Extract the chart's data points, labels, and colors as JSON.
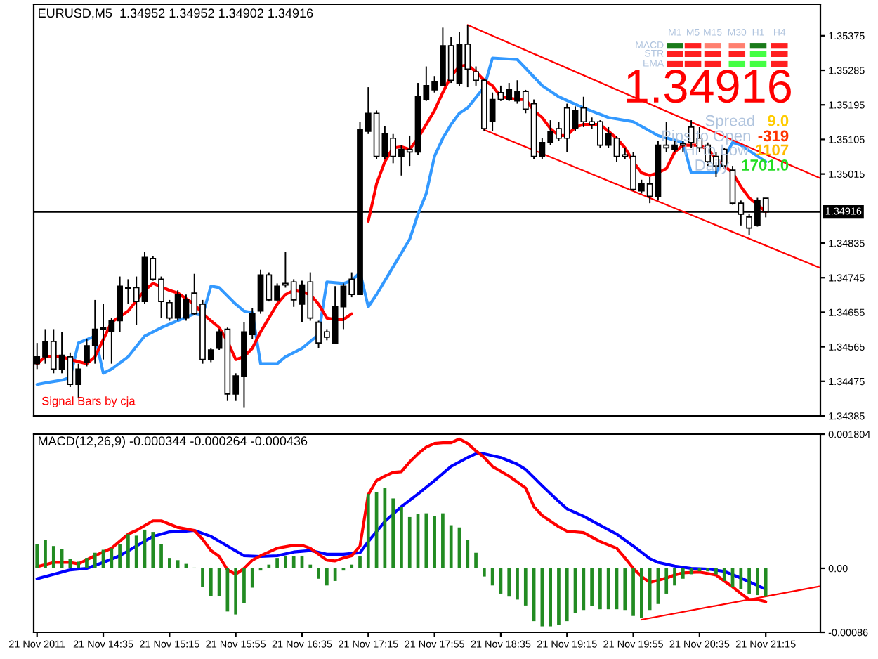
{
  "chart_data": [
    {
      "type": "candlestick",
      "title": "EURUSD,M5  1.34952 1.34952 1.34902 1.34916",
      "x": [
        "2011-11-21T13:55",
        "2011-11-21T14:00",
        "2011-11-21T14:05",
        "2011-11-21T14:10",
        "2011-11-21T14:15",
        "2011-11-21T14:20",
        "2011-11-21T14:25",
        "2011-11-21T14:30",
        "2011-11-21T14:35",
        "2011-11-21T14:40",
        "2011-11-21T14:45",
        "2011-11-21T14:50",
        "2011-11-21T14:55",
        "2011-11-21T15:00",
        "2011-11-21T15:05",
        "2011-11-21T15:10",
        "2011-11-21T15:15",
        "2011-11-21T15:20",
        "2011-11-21T15:25",
        "2011-11-21T15:30",
        "2011-11-21T15:35",
        "2011-11-21T15:40",
        "2011-11-21T15:45",
        "2011-11-21T15:50",
        "2011-11-21T15:55",
        "2011-11-21T16:00",
        "2011-11-21T16:05",
        "2011-11-21T16:10",
        "2011-11-21T16:15",
        "2011-11-21T16:20",
        "2011-11-21T16:25",
        "2011-11-21T16:30",
        "2011-11-21T16:35",
        "2011-11-21T16:40",
        "2011-11-21T16:45",
        "2011-11-21T16:50",
        "2011-11-21T16:55",
        "2011-11-21T17:00",
        "2011-11-21T17:05",
        "2011-11-21T17:10",
        "2011-11-21T17:15",
        "2011-11-21T17:20",
        "2011-11-21T17:25",
        "2011-11-21T17:30",
        "2011-11-21T17:35",
        "2011-11-21T17:40",
        "2011-11-21T17:45",
        "2011-11-21T17:50",
        "2011-11-21T17:55",
        "2011-11-21T18:00",
        "2011-11-21T18:05",
        "2011-11-21T18:10",
        "2011-11-21T18:15",
        "2011-11-21T18:20",
        "2011-11-21T18:25",
        "2011-11-21T18:30",
        "2011-11-21T18:35",
        "2011-11-21T18:40",
        "2011-11-21T18:45",
        "2011-11-21T18:50",
        "2011-11-21T18:55",
        "2011-11-21T19:00",
        "2011-11-21T19:05",
        "2011-11-21T19:10",
        "2011-11-21T19:15",
        "2011-11-21T19:20",
        "2011-11-21T19:25",
        "2011-11-21T19:30",
        "2011-11-21T19:35",
        "2011-11-21T19:40",
        "2011-11-21T19:45",
        "2011-11-21T19:50",
        "2011-11-21T19:55",
        "2011-11-21T20:00",
        "2011-11-21T20:05",
        "2011-11-21T20:10",
        "2011-11-21T20:15",
        "2011-11-21T20:20",
        "2011-11-21T20:25",
        "2011-11-21T20:30",
        "2011-11-21T20:35",
        "2011-11-21T20:40",
        "2011-11-21T20:45",
        "2011-11-21T20:50",
        "2011-11-21T20:55",
        "2011-11-21T21:00",
        "2011-11-21T21:05",
        "2011-11-21T21:10",
        "2011-11-21T21:15"
      ],
      "ohlc": [
        [
          1.34521,
          1.34575,
          1.34507,
          1.34539
        ],
        [
          1.34539,
          1.34611,
          1.34521,
          1.34579
        ],
        [
          1.34579,
          1.34611,
          1.34496,
          1.34507
        ],
        [
          1.34507,
          1.34604,
          1.34496,
          1.34543
        ],
        [
          1.34539,
          1.3455,
          1.3446,
          1.34467
        ],
        [
          1.34467,
          1.34521,
          1.34431,
          1.34507
        ],
        [
          1.34525,
          1.34586,
          1.34514,
          1.34568
        ],
        [
          1.34568,
          1.34687,
          1.34521,
          1.34611
        ],
        [
          1.34611,
          1.34676,
          1.34532,
          1.34615
        ],
        [
          1.34604,
          1.3464,
          1.34521,
          1.34633
        ],
        [
          1.34633,
          1.34748,
          1.34604,
          1.34723
        ],
        [
          1.34716,
          1.34741,
          1.34676,
          1.34719
        ],
        [
          1.34719,
          1.34748,
          1.34622,
          1.34683
        ],
        [
          1.34683,
          1.34813,
          1.34676,
          1.34798
        ],
        [
          1.34795,
          1.34802,
          1.34737,
          1.34741
        ],
        [
          1.34741,
          1.34748,
          1.3464,
          1.34683
        ],
        [
          1.3468,
          1.34687,
          1.34633,
          1.3464
        ],
        [
          1.3464,
          1.34712,
          1.34633,
          1.34701
        ],
        [
          1.3464,
          1.34701,
          1.34633,
          1.34687
        ],
        [
          1.34705,
          1.34755,
          1.34647,
          1.34651
        ],
        [
          1.34676,
          1.34687,
          1.34521,
          1.34532
        ],
        [
          1.34532,
          1.34561,
          1.34525,
          1.34557
        ],
        [
          1.34561,
          1.34611,
          1.34557,
          1.34604
        ],
        [
          1.34611,
          1.34615,
          1.34424,
          1.34442
        ],
        [
          1.34442,
          1.34496,
          1.34424,
          1.34489
        ],
        [
          1.34489,
          1.34629,
          1.34406,
          1.34604
        ],
        [
          1.34597,
          1.34665,
          1.34586,
          1.34651
        ],
        [
          1.34658,
          1.34766,
          1.34651,
          1.34752
        ],
        [
          1.34752,
          1.34759,
          1.34683,
          1.34687
        ],
        [
          1.34687,
          1.3473,
          1.34683,
          1.34723
        ],
        [
          1.3473,
          1.34813,
          1.34719,
          1.34726
        ],
        [
          1.34734,
          1.34741,
          1.34669,
          1.34687
        ],
        [
          1.34676,
          1.34737,
          1.34629,
          1.34726
        ],
        [
          1.34734,
          1.34759,
          1.34633,
          1.3464
        ],
        [
          1.34629,
          1.34633,
          1.34561,
          1.34575
        ],
        [
          1.34604,
          1.34611,
          1.34582,
          1.3459
        ],
        [
          1.34575,
          1.34723,
          1.34572,
          1.34669
        ],
        [
          1.34669,
          1.3473,
          1.34611,
          1.34723
        ],
        [
          1.34741,
          1.34759,
          1.34694,
          1.34701
        ],
        [
          1.34701,
          1.35151,
          1.34701,
          1.3513
        ],
        [
          1.35126,
          1.35241,
          1.35119,
          1.35173
        ],
        [
          1.35173,
          1.3518,
          1.35054,
          1.35061
        ],
        [
          1.35061,
          1.3514,
          1.35054,
          1.35119
        ],
        [
          1.35108,
          1.35119,
          1.35043,
          1.35061
        ],
        [
          1.35061,
          1.3509,
          1.35011,
          1.35079
        ],
        [
          1.35079,
          1.35115,
          1.35036,
          1.35072
        ],
        [
          1.35072,
          1.35252,
          1.35065,
          1.35216
        ],
        [
          1.35209,
          1.35295,
          1.35205,
          1.35245
        ],
        [
          1.35234,
          1.3527,
          1.35227,
          1.35256
        ],
        [
          1.35245,
          1.35396,
          1.35245,
          1.35349
        ],
        [
          1.35349,
          1.35371,
          1.35252,
          1.35259
        ],
        [
          1.35252,
          1.35385,
          1.35245,
          1.35353
        ],
        [
          1.35353,
          1.35403,
          1.35241,
          1.35288
        ],
        [
          1.35281,
          1.35295,
          1.35245,
          1.35259
        ],
        [
          1.35259,
          1.35263,
          1.35126,
          1.35133
        ],
        [
          1.35151,
          1.35227,
          1.35126,
          1.35209
        ],
        [
          1.35227,
          1.35245,
          1.35205,
          1.35209
        ],
        [
          1.35209,
          1.35252,
          1.35205,
          1.35234
        ],
        [
          1.35205,
          1.35259,
          1.35198,
          1.3523
        ],
        [
          1.3523,
          1.35234,
          1.35173,
          1.35184
        ],
        [
          1.35198,
          1.35209,
          1.35054,
          1.35061
        ],
        [
          1.35061,
          1.35108,
          1.35054,
          1.35097
        ],
        [
          1.35097,
          1.35155,
          1.3509,
          1.35126
        ],
        [
          1.35133,
          1.35151,
          1.35101,
          1.35108
        ],
        [
          1.35187,
          1.35198,
          1.35072,
          1.35108
        ],
        [
          1.35133,
          1.35191,
          1.35126,
          1.3518
        ],
        [
          1.35187,
          1.35216,
          1.35137,
          1.35151
        ],
        [
          1.35151,
          1.35162,
          1.35133,
          1.35144
        ],
        [
          1.35151,
          1.35155,
          1.35083,
          1.3509
        ],
        [
          1.3509,
          1.35137,
          1.35083,
          1.35119
        ],
        [
          1.35108,
          1.35115,
          1.35047,
          1.35061
        ],
        [
          1.35065,
          1.35083,
          1.35054,
          1.35061
        ],
        [
          1.35061,
          1.35072,
          1.34971,
          1.34975
        ],
        [
          1.34971,
          1.35,
          1.34964,
          1.34989
        ],
        [
          1.34989,
          1.35007,
          1.34939,
          1.34957
        ],
        [
          1.34957,
          1.35101,
          1.34946,
          1.3509
        ],
        [
          1.3509,
          1.35151,
          1.35072,
          1.35083
        ],
        [
          1.35079,
          1.35101,
          1.35072,
          1.3509
        ],
        [
          1.35094,
          1.35101,
          1.35072,
          1.3509
        ],
        [
          1.35137,
          1.35155,
          1.35083,
          1.35097
        ],
        [
          1.35108,
          1.35137,
          1.35072,
          1.35083
        ],
        [
          1.3509,
          1.35097,
          1.35036,
          1.35047
        ],
        [
          1.35061,
          1.35072,
          1.35007,
          1.35036
        ],
        [
          1.35079,
          1.35083,
          1.35029,
          1.35036
        ],
        [
          1.35025,
          1.35036,
          1.34935,
          1.34939
        ],
        [
          1.34939,
          1.34946,
          1.34881,
          1.3491
        ],
        [
          1.34903,
          1.3491,
          1.34856,
          1.34874
        ],
        [
          1.34881,
          1.34953,
          1.34878,
          1.34946
        ],
        [
          1.34952,
          1.34952,
          1.34902,
          1.34916
        ]
      ],
      "colors": [
        "#000000",
        "#000000",
        "#ffffff",
        "#000000",
        "#ffffff",
        "#000000",
        "#000000",
        "#000000",
        "#000000",
        "#000000",
        "#000000",
        "#ffffff",
        "#ffffff",
        "#000000",
        "#ffffff",
        "#ffffff",
        "#ffffff",
        "#000000",
        "#000000",
        "#ffffff",
        "#ffffff",
        "#000000",
        "#000000",
        "#ffffff",
        "#000000",
        "#000000",
        "#000000",
        "#000000",
        "#ffffff",
        "#000000",
        "#ffffff",
        "#ffffff",
        "#000000",
        "#ffffff",
        "#ffffff",
        "#ffffff",
        "#000000",
        "#000000",
        "#ffffff",
        "#000000",
        "#000000",
        "#ffffff",
        "#000000",
        "#ffffff",
        "#000000",
        "#ffffff",
        "#000000",
        "#000000",
        "#000000",
        "#000000",
        "#ffffff",
        "#000000",
        "#ffffff",
        "#ffffff",
        "#ffffff",
        "#000000",
        "#ffffff",
        "#000000",
        "#000000",
        "#ffffff",
        "#ffffff",
        "#000000",
        "#000000",
        "#ffffff",
        "#ffffff",
        "#000000",
        "#ffffff",
        "#ffffff",
        "#ffffff",
        "#000000",
        "#ffffff",
        "#ffffff",
        "#ffffff",
        "#000000",
        "#ffffff",
        "#000000",
        "#ffffff",
        "#000000",
        "#ffffff",
        "#ffffff",
        "#ffffff",
        "#ffffff",
        "#ffffff",
        "#ffffff",
        "#ffffff",
        "#ffffff",
        "#ffffff",
        "#000000",
        "#ffffff"
      ],
      "series": [
        {
          "type": "line",
          "color": "#3399ff",
          "x": [
            "2011-11-21T13:55",
            "2011-11-21T14:00",
            "2011-11-21T14:10",
            "2011-11-21T14:15",
            "2011-11-21T14:20",
            "2011-11-21T14:30",
            "2011-11-21T14:35",
            "2011-11-21T14:40",
            "2011-11-21T14:50",
            "2011-11-21T15:00",
            "2011-11-21T15:10",
            "2011-11-21T15:20",
            "2011-11-21T15:30",
            "2011-11-21T15:35",
            "2011-11-21T15:40",
            "2011-11-21T15:45",
            "2011-11-21T15:55",
            "2011-11-21T16:00",
            "2011-11-21T16:05",
            "2011-11-21T16:10",
            "2011-11-21T16:20",
            "2011-11-21T16:25",
            "2011-11-21T16:35",
            "2011-11-21T16:45",
            "2011-11-21T16:50",
            "2011-11-21T17:00",
            "2011-11-21T17:05",
            "2011-11-21T17:10",
            "2011-11-21T17:15",
            "2011-11-21T17:20",
            "2011-11-21T17:30",
            "2011-11-21T17:40",
            "2011-11-21T17:45",
            "2011-11-21T17:50",
            "2011-11-21T17:55",
            "2011-11-21T18:00",
            "2011-11-21T18:05",
            "2011-11-21T18:10",
            "2011-11-21T18:15",
            "2011-11-21T18:25",
            "2011-11-21T18:30",
            "2011-11-21T18:45",
            "2011-11-21T19:00",
            "2011-11-21T19:10",
            "2011-11-21T19:25",
            "2011-11-21T19:40",
            "2011-11-21T19:55",
            "2011-11-21T20:10",
            "2011-11-21T20:25",
            "2011-11-21T20:30",
            "2011-11-21T20:45",
            "2011-11-21T20:55",
            "2011-11-21T21:00",
            "2011-11-21T21:15"
          ],
          "values": [
            1.34467,
            1.34471,
            1.34478,
            1.34485,
            1.34575,
            1.34593,
            1.34496,
            1.34507,
            1.34539,
            1.34593,
            1.34615,
            1.34633,
            1.34651,
            1.34647,
            1.34723,
            1.34719,
            1.34676,
            1.34658,
            1.34654,
            1.34521,
            1.34521,
            1.34539,
            1.34561,
            1.34597,
            1.34734,
            1.3473,
            1.34737,
            1.34759,
            1.34669,
            1.34701,
            1.34773,
            1.34845,
            1.3491,
            1.34964,
            1.35061,
            1.35108,
            1.35144,
            1.35173,
            1.35187,
            1.35241,
            1.35317,
            1.35313,
            1.35245,
            1.35216,
            1.35187,
            1.35162,
            1.35151,
            1.35115,
            1.35097,
            1.35018,
            1.35018,
            1.35097,
            1.3509,
            1.35047
          ]
        },
        {
          "type": "line",
          "color": "#ff0000",
          "x": [
            "2011-11-21T13:55",
            "2011-11-21T14:00",
            "2011-11-21T14:10",
            "2011-11-21T14:15",
            "2011-11-21T14:25",
            "2011-11-21T14:30",
            "2011-11-21T14:40",
            "2011-11-21T14:50",
            "2011-11-21T15:00",
            "2011-11-21T15:05",
            "2011-11-21T15:15",
            "2011-11-21T15:20",
            "2011-11-21T15:30",
            "2011-11-21T15:35",
            "2011-11-21T15:45",
            "2011-11-21T15:50",
            "2011-11-21T15:55",
            "2011-11-21T16:00",
            "2011-11-21T16:05",
            "2011-11-21T16:10",
            "2011-11-21T16:15",
            "2011-11-21T16:20",
            "2011-11-21T16:25",
            "2011-11-21T16:30",
            "2011-11-21T16:35",
            "2011-11-21T16:40",
            "2011-11-21T16:45",
            "2011-11-21T16:50",
            "2011-11-21T16:55",
            "2011-11-21T17:00",
            "2011-11-21T17:05",
            "2011-11-21T17:10",
            "2011-11-21T17:15",
            "2011-11-21T17:20",
            "2011-11-21T17:25",
            "2011-11-21T17:30",
            "2011-11-21T17:35",
            "2011-11-21T17:40",
            "2011-11-21T17:45",
            "2011-11-21T17:50",
            "2011-11-21T17:55",
            "2011-11-21T18:00",
            "2011-11-21T18:05",
            "2011-11-21T18:10",
            "2011-11-21T18:15",
            "2011-11-21T18:20",
            "2011-11-21T18:25",
            "2011-11-21T18:30",
            "2011-11-21T18:35",
            "2011-11-21T18:45",
            "2011-11-21T18:50",
            "2011-11-21T18:55",
            "2011-11-21T19:00",
            "2011-11-21T19:05",
            "2011-11-21T19:10",
            "2011-11-21T19:15",
            "2011-11-21T19:20",
            "2011-11-21T19:25",
            "2011-11-21T19:35",
            "2011-11-21T19:40",
            "2011-11-21T19:45",
            "2011-11-21T19:50",
            "2011-11-21T19:55",
            "2011-11-21T20:00",
            "2011-11-21T20:05",
            "2011-11-21T20:10",
            "2011-11-21T20:15",
            "2011-11-21T20:20",
            "2011-11-21T20:25",
            "2011-11-21T20:30",
            "2011-11-21T20:35",
            "2011-11-21T20:40",
            "2011-11-21T20:45",
            "2011-11-21T20:50",
            "2011-11-21T20:55",
            "2011-11-21T21:00",
            "2011-11-21T21:05",
            "2011-11-21T21:10",
            "2011-11-21T21:15"
          ],
          "values": [
            1.34521,
            1.34539,
            1.34539,
            1.34532,
            1.34521,
            1.34539,
            1.34629,
            1.34658,
            1.34712,
            1.3473,
            1.34712,
            1.34705,
            1.34676,
            1.34651,
            1.34615,
            1.34579,
            1.34532,
            1.34539,
            1.34561,
            1.34604,
            1.3464,
            1.34676,
            1.34701,
            1.34712,
            1.34708,
            1.34701,
            1.34676,
            1.3464,
            1.34636,
            1.34636,
            1.34651,
            null,
            1.34892,
            1.34989,
            1.35047,
            1.35083,
            1.35086,
            1.35079,
            1.35108,
            1.35144,
            1.3518,
            1.35227,
            1.3527,
            1.35295,
            1.35299,
            1.35281,
            1.35259,
            1.35245,
            1.35216,
            1.35209,
            1.35209,
            1.3518,
            1.35162,
            1.35133,
            1.35115,
            1.35115,
            1.35137,
            1.35144,
            1.35144,
            1.35126,
            1.35108,
            1.35083,
            1.35047,
            1.35018,
            1.35011,
            1.35018,
            1.35029,
            1.35072,
            1.3509,
            1.3509,
            1.3509,
            1.35079,
            1.35054,
            1.35036,
            1.35018,
            1.34982,
            1.34953,
            1.34935,
            1.34917
          ]
        },
        {
          "type": "line",
          "color": "#ff0000",
          "x": [
            "2011-11-21T18:15",
            "2011-11-21T21:48"
          ],
          "values": [
            1.35403,
            1.35004
          ]
        },
        {
          "type": "line",
          "color": "#ff0000",
          "x": [
            "2011-11-21T18:25",
            "2011-11-21T21:48"
          ],
          "values": [
            1.3513,
            1.3477
          ]
        }
      ],
      "xlim": [
        "2011-11-21T13:53",
        "2011-11-21T21:48"
      ],
      "ylim": [
        1.34385,
        1.35457
      ],
      "yticks": [
        1.35375,
        1.35285,
        1.35195,
        1.35105,
        1.35015,
        1.34835,
        1.34745,
        1.34655,
        1.34565,
        1.34475,
        1.34385
      ],
      "tick_labels": "y",
      "ref_lines": [
        {
          "axis": "y",
          "value": 1.34916,
          "label": "1.34916",
          "color": "#000000"
        }
      ],
      "annotations": [
        "Signal Bars by cja",
        "MACD",
        "STR",
        "EMA",
        "M1",
        "M5",
        "M15",
        "M30",
        "H1",
        "H4",
        "1.34916",
        "Spread",
        "9.0",
        "Pips to Open",
        "-319",
        "Hi to Low",
        "1107",
        "Daily",
        "1701.0"
      ]
    },
    {
      "type": "bar",
      "title": "MACD(12,26,9) -0.000344 -0.000264 -0.000436",
      "x": [
        "2011-11-21T13:55",
        "2011-11-21T14:00",
        "2011-11-21T14:05",
        "2011-11-21T14:10",
        "2011-11-21T14:15",
        "2011-11-21T14:20",
        "2011-11-21T14:25",
        "2011-11-21T14:30",
        "2011-11-21T14:35",
        "2011-11-21T14:40",
        "2011-11-21T14:45",
        "2011-11-21T14:50",
        "2011-11-21T14:55",
        "2011-11-21T15:00",
        "2011-11-21T15:05",
        "2011-11-21T15:10",
        "2011-11-21T15:15",
        "2011-11-21T15:20",
        "2011-11-21T15:25",
        "2011-11-21T15:30",
        "2011-11-21T15:35",
        "2011-11-21T15:40",
        "2011-11-21T15:45",
        "2011-11-21T15:50",
        "2011-11-21T15:55",
        "2011-11-21T16:00",
        "2011-11-21T16:05",
        "2011-11-21T16:10",
        "2011-11-21T16:15",
        "2011-11-21T16:20",
        "2011-11-21T16:25",
        "2011-11-21T16:30",
        "2011-11-21T16:35",
        "2011-11-21T16:40",
        "2011-11-21T16:45",
        "2011-11-21T16:50",
        "2011-11-21T16:55",
        "2011-11-21T17:00",
        "2011-11-21T17:05",
        "2011-11-21T17:10",
        "2011-11-21T17:15",
        "2011-11-21T17:20",
        "2011-11-21T17:25",
        "2011-11-21T17:30",
        "2011-11-21T17:35",
        "2011-11-21T17:40",
        "2011-11-21T17:45",
        "2011-11-21T17:50",
        "2011-11-21T17:55",
        "2011-11-21T18:00",
        "2011-11-21T18:05",
        "2011-11-21T18:10",
        "2011-11-21T18:15",
        "2011-11-21T18:20",
        "2011-11-21T18:25",
        "2011-11-21T18:30",
        "2011-11-21T18:35",
        "2011-11-21T18:40",
        "2011-11-21T18:45",
        "2011-11-21T18:50",
        "2011-11-21T18:55",
        "2011-11-21T19:00",
        "2011-11-21T19:05",
        "2011-11-21T19:10",
        "2011-11-21T19:15",
        "2011-11-21T19:20",
        "2011-11-21T19:25",
        "2011-11-21T19:30",
        "2011-11-21T19:35",
        "2011-11-21T19:40",
        "2011-11-21T19:45",
        "2011-11-21T19:50",
        "2011-11-21T19:55",
        "2011-11-21T20:00",
        "2011-11-21T20:05",
        "2011-11-21T20:10",
        "2011-11-21T20:15",
        "2011-11-21T20:20",
        "2011-11-21T20:25",
        "2011-11-21T20:30",
        "2011-11-21T20:35",
        "2011-11-21T20:40",
        "2011-11-21T20:45",
        "2011-11-21T20:50",
        "2011-11-21T20:55",
        "2011-11-21T21:00",
        "2011-11-21T21:05",
        "2011-11-21T21:10",
        "2011-11-21T21:15"
      ],
      "values": [
        0.00033,
        0.00038,
        0.0003,
        0.00026,
        0.00013,
        9e-05,
        0.00014,
        0.00021,
        0.00025,
        0.00027,
        0.00033,
        0.00046,
        0.00044,
        0.00052,
        0.00049,
        0.00033,
        0.00014,
        0.00011,
        6e-05,
        1e-05,
        -0.00025,
        -0.00037,
        -0.00037,
        -0.00058,
        -0.00062,
        -0.00047,
        -0.00026,
        -3e-05,
        5e-05,
        0.00014,
        0.00017,
        0.00016,
        0.00017,
        5e-05,
        -0.00014,
        -0.00023,
        -0.00017,
        -3e-05,
        5e-05,
        0.00017,
        0.001,
        0.00102,
        0.00108,
        0.00094,
        0.00083,
        0.00069,
        0.00073,
        0.00074,
        0.0007,
        0.00074,
        0.00058,
        0.00055,
        0.00038,
        0.00021,
        -0.00011,
        -0.00023,
        -0.00034,
        -0.00038,
        -0.00042,
        -0.0005,
        -0.00071,
        -0.00078,
        -0.00078,
        -0.00076,
        -0.00071,
        -0.0006,
        -0.00056,
        -0.00051,
        -0.00055,
        -0.00055,
        -0.00055,
        -0.00056,
        -0.00064,
        -0.00067,
        -0.00056,
        -0.00048,
        -0.00034,
        -0.00023,
        -0.00014,
        -8e-05,
        -4e-05,
        -4e-05,
        -8e-05,
        -0.00017,
        -0.00025,
        -0.00028,
        -0.00034,
        -0.00036,
        -0.00038
      ],
      "color": "#228b22",
      "series": [
        {
          "type": "line",
          "color": "#0000ff",
          "x": [
            "2011-11-21T13:55",
            "2011-11-21T14:05",
            "2011-11-21T14:15",
            "2011-11-21T14:25",
            "2011-11-21T14:35",
            "2011-11-21T14:45",
            "2011-11-21T14:55",
            "2011-11-21T15:05",
            "2011-11-21T15:15",
            "2011-11-21T15:25",
            "2011-11-21T15:30",
            "2011-11-21T15:40",
            "2011-11-21T15:50",
            "2011-11-21T16:00",
            "2011-11-21T16:10",
            "2011-11-21T16:20",
            "2011-11-21T16:30",
            "2011-11-21T16:40",
            "2011-11-21T16:50",
            "2011-11-21T17:00",
            "2011-11-21T17:10",
            "2011-11-21T17:15",
            "2011-11-21T17:25",
            "2011-11-21T17:35",
            "2011-11-21T17:45",
            "2011-11-21T17:55",
            "2011-11-21T18:05",
            "2011-11-21T18:15",
            "2011-11-21T18:20",
            "2011-11-21T18:25",
            "2011-11-21T18:35",
            "2011-11-21T18:45",
            "2011-11-21T18:50",
            "2011-11-21T19:00",
            "2011-11-21T19:10",
            "2011-11-21T19:15",
            "2011-11-21T19:25",
            "2011-11-21T19:35",
            "2011-11-21T19:45",
            "2011-11-21T19:55",
            "2011-11-21T20:05",
            "2011-11-21T20:10",
            "2011-11-21T20:20",
            "2011-11-21T20:30",
            "2011-11-21T20:40",
            "2011-11-21T20:50",
            "2011-11-21T21:00",
            "2011-11-21T21:10",
            "2011-11-21T21:15"
          ],
          "values": [
            -0.00014,
            -8e-05,
            -2e-05,
            0.0,
            8e-05,
            0.00017,
            0.0003,
            0.00043,
            0.00049,
            0.0005,
            0.00051,
            0.00043,
            0.0003,
            0.00017,
            0.00016,
            0.00017,
            0.00022,
            0.00024,
            0.00019,
            0.00019,
            0.00021,
            0.00036,
            0.00063,
            0.00083,
            0.001,
            0.00118,
            0.00137,
            0.00149,
            0.00154,
            0.00154,
            0.00149,
            0.0014,
            0.00133,
            0.00111,
            0.0009,
            0.0008,
            0.0007,
            0.00058,
            0.00046,
            0.0003,
            0.00013,
            8e-05,
            3e-05,
            0.0,
            -1e-05,
            -4e-05,
            -0.00013,
            -0.00023,
            -0.00028
          ]
        },
        {
          "type": "line",
          "color": "#ff0000",
          "x": [
            "2011-11-21T13:55",
            "2011-11-21T14:05",
            "2011-11-21T14:15",
            "2011-11-21T14:20",
            "2011-11-21T14:30",
            "2011-11-21T14:40",
            "2011-11-21T14:50",
            "2011-11-21T14:55",
            "2011-11-21T15:05",
            "2011-11-21T15:10",
            "2011-11-21T15:20",
            "2011-11-21T15:30",
            "2011-11-21T15:35",
            "2011-11-21T15:40",
            "2011-11-21T15:45",
            "2011-11-21T15:50",
            "2011-11-21T15:55",
            "2011-11-21T16:00",
            "2011-11-21T16:05",
            "2011-11-21T16:10",
            "2011-11-21T16:15",
            "2011-11-21T16:20",
            "2011-11-21T16:30",
            "2011-11-21T16:35",
            "2011-11-21T16:40",
            "2011-11-21T16:50",
            "2011-11-21T16:55",
            "2011-11-21T17:00",
            "2011-11-21T17:05",
            "2011-11-21T17:10",
            "2011-11-21T17:15",
            "2011-11-21T17:20",
            "2011-11-21T17:25",
            "2011-11-21T17:30",
            "2011-11-21T17:35",
            "2011-11-21T17:40",
            "2011-11-21T17:45",
            "2011-11-21T17:50",
            "2011-11-21T17:55",
            "2011-11-21T18:00",
            "2011-11-21T18:05",
            "2011-11-21T18:10",
            "2011-11-21T18:15",
            "2011-11-21T18:20",
            "2011-11-21T18:25",
            "2011-11-21T18:30",
            "2011-11-21T18:40",
            "2011-11-21T18:50",
            "2011-11-21T18:55",
            "2011-11-21T19:00",
            "2011-11-21T19:10",
            "2011-11-21T19:15",
            "2011-11-21T19:25",
            "2011-11-21T19:35",
            "2011-11-21T19:45",
            "2011-11-21T19:50",
            "2011-11-21T19:55",
            "2011-11-21T20:00",
            "2011-11-21T20:05",
            "2011-11-21T20:10",
            "2011-11-21T20:15",
            "2011-11-21T20:20",
            "2011-11-21T20:25",
            "2011-11-21T20:35",
            "2011-11-21T20:45",
            "2011-11-21T20:50",
            "2011-11-21T20:55",
            "2011-11-21T21:00",
            "2011-11-21T21:05",
            "2011-11-21T21:10",
            "2011-11-21T21:15"
          ],
          "values": [
            2e-05,
            8e-05,
            8e-05,
            6e-05,
            0.00017,
            0.00027,
            0.00046,
            0.00051,
            0.00064,
            0.00064,
            0.00055,
            0.00051,
            0.00039,
            0.00024,
            0.00016,
            -2e-05,
            -8e-05,
            0.0,
            0.00011,
            0.00017,
            0.00022,
            0.00027,
            0.00031,
            0.00031,
            0.00027,
            0.00011,
            0.0001,
            0.00014,
            0.00017,
            0.0003,
            0.00099,
            0.00118,
            0.00124,
            0.00129,
            0.0013,
            0.00143,
            0.00154,
            0.00163,
            0.00168,
            0.00169,
            0.00169,
            0.00174,
            0.00168,
            0.00158,
            0.00149,
            0.00137,
            0.00124,
            0.00108,
            0.00083,
            0.00071,
            0.00056,
            0.0005,
            0.00048,
            0.00036,
            0.00027,
            0.00014,
            0.0,
            -0.00011,
            -0.00019,
            -0.00016,
            -0.00013,
            -9e-05,
            -6e-05,
            -5e-05,
            -9e-05,
            -0.00017,
            -0.00025,
            -0.00034,
            -0.00042,
            -0.00042,
            -0.00045
          ]
        },
        {
          "type": "line",
          "color": "#ff0000",
          "x": [
            "2011-11-21T20:00",
            "2011-11-21T21:48"
          ],
          "values": [
            -0.00069,
            -0.00024
          ]
        }
      ],
      "xlim": [
        "2011-11-21T13:53",
        "2011-11-21T21:48"
      ],
      "ylim": [
        -0.00086,
        0.001804
      ],
      "yticks": [
        0.001804,
        {
          "value": 0,
          "label": "0.00"
        },
        -0.00086
      ],
      "xticks": [
        {
          "value": "2011-11-21T13:55",
          "label": "21 Nov 2011"
        },
        {
          "value": "2011-11-21T14:35",
          "label": "21 Nov 14:35"
        },
        {
          "value": "2011-11-21T15:15",
          "label": "21 Nov 15:15"
        },
        {
          "value": "2011-11-21T15:55",
          "label": "21 Nov 15:55"
        },
        {
          "value": "2011-11-21T16:35",
          "label": "21 Nov 16:35"
        },
        {
          "value": "2011-11-21T17:15",
          "label": "21 Nov 17:15"
        },
        {
          "value": "2011-11-21T17:55",
          "label": "21 Nov 17:55"
        },
        {
          "value": "2011-11-21T18:35",
          "label": "21 Nov 18:35"
        },
        {
          "value": "2011-11-21T19:15",
          "label": "21 Nov 19:15"
        },
        {
          "value": "2011-11-21T19:55",
          "label": "21 Nov 19:55"
        },
        {
          "value": "2011-11-21T20:35",
          "label": "21 Nov 20:35"
        },
        {
          "value": "2011-11-21T21:15",
          "label": "21 Nov 21:15"
        }
      ]
    }
  ]
}
